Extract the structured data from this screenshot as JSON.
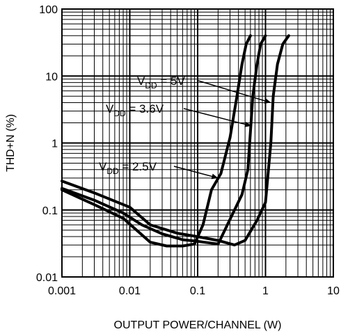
{
  "chart_data": {
    "type": "line",
    "title": "",
    "xlabel": "OUTPUT POWER/CHANNEL (W)",
    "ylabel": "THD+N (%)",
    "x_scale": "log",
    "y_scale": "log",
    "xlim": [
      0.001,
      10
    ],
    "ylim": [
      0.01,
      100
    ],
    "grid": true,
    "x_tick_labels": [
      "0.001",
      "0.01",
      "0.1",
      "1",
      "10"
    ],
    "x_tick_values": [
      0.001,
      0.01,
      0.1,
      1,
      10
    ],
    "y_tick_labels": [
      "0.01",
      "0.1",
      "1",
      "10",
      "100"
    ],
    "y_tick_values": [
      0.01,
      0.1,
      1,
      10,
      100
    ],
    "series": [
      {
        "name": "VDD = 2.5V",
        "label_main": "V",
        "label_sub": "DD",
        "label_rest": " = 2.5V",
        "x": [
          0.001,
          0.003,
          0.008,
          0.02,
          0.035,
          0.06,
          0.09,
          0.12,
          0.16,
          0.22,
          0.3,
          0.38,
          0.45,
          0.52,
          0.6
        ],
        "y": [
          0.2,
          0.12,
          0.075,
          0.033,
          0.029,
          0.029,
          0.031,
          0.06,
          0.2,
          0.35,
          1.2,
          5,
          15,
          30,
          40
        ]
      },
      {
        "name": "VDD = 3.6V",
        "label_main": "V",
        "label_sub": "DD",
        "label_rest": " = 3.6V",
        "x": [
          0.001,
          0.003,
          0.008,
          0.015,
          0.03,
          0.06,
          0.1,
          0.2,
          0.35,
          0.45,
          0.55,
          0.6,
          0.65,
          0.75,
          0.85,
          1.0
        ],
        "y": [
          0.21,
          0.14,
          0.09,
          0.06,
          0.044,
          0.036,
          0.034,
          0.031,
          0.1,
          0.17,
          0.4,
          1.5,
          5,
          15,
          30,
          40
        ]
      },
      {
        "name": "VDD = 5V",
        "label_main": "V",
        "label_sub": "DD",
        "label_rest": " = 5V",
        "x": [
          0.001,
          0.003,
          0.01,
          0.02,
          0.05,
          0.1,
          0.2,
          0.35,
          0.5,
          0.75,
          1.0,
          1.2,
          1.3,
          1.5,
          1.8,
          2.2
        ],
        "y": [
          0.27,
          0.18,
          0.11,
          0.06,
          0.045,
          0.04,
          0.035,
          0.03,
          0.035,
          0.07,
          0.13,
          1.0,
          5,
          15,
          30,
          40
        ]
      }
    ]
  }
}
